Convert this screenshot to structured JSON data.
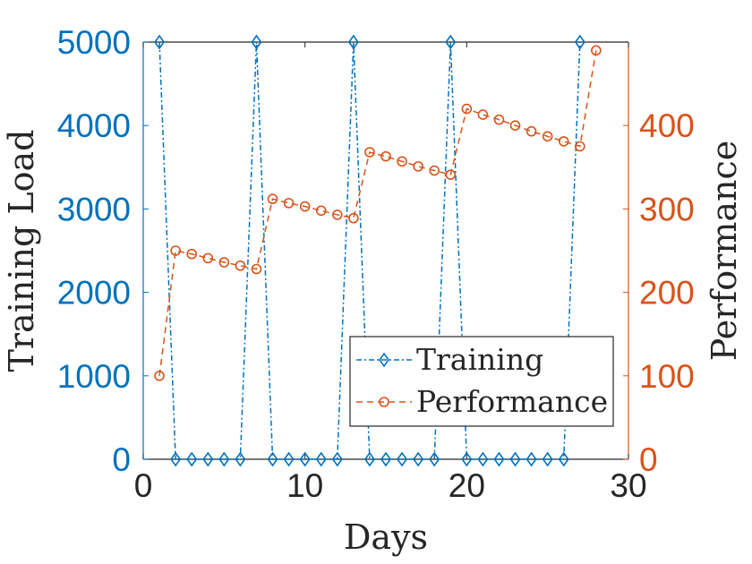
{
  "chart_data": {
    "type": "line",
    "xlabel": "Days",
    "ylabel_left": "Training Load",
    "ylabel_right": "Performance",
    "xlim": [
      0,
      30
    ],
    "ylim_left": [
      0,
      5000
    ],
    "ylim_right": [
      0,
      500
    ],
    "xticks": [
      0,
      10,
      20,
      30
    ],
    "yticks_left": [
      0,
      1000,
      2000,
      3000,
      4000,
      5000
    ],
    "yticks_right": [
      0,
      100,
      200,
      300,
      400
    ],
    "legend_position": "bottom-right",
    "colors": {
      "training": "#0072BD",
      "performance": "#D95319",
      "axis": "#262626"
    },
    "series": [
      {
        "name": "Training",
        "axis": "left",
        "marker": "diamond",
        "line_style": "dash-dot",
        "x": [
          1,
          2,
          3,
          4,
          5,
          6,
          7,
          8,
          9,
          10,
          11,
          12,
          13,
          14,
          15,
          16,
          17,
          18,
          19,
          20,
          21,
          22,
          23,
          24,
          25,
          26,
          27
        ],
        "values": [
          5000,
          0,
          0,
          0,
          0,
          0,
          5000,
          0,
          0,
          0,
          0,
          0,
          5000,
          0,
          0,
          0,
          0,
          0,
          5000,
          0,
          0,
          0,
          0,
          0,
          0,
          0,
          5000
        ]
      },
      {
        "name": "Performance",
        "axis": "right",
        "marker": "circle",
        "line_style": "dashed",
        "x": [
          1,
          2,
          3,
          4,
          5,
          6,
          7,
          8,
          9,
          10,
          11,
          12,
          13,
          14,
          15,
          16,
          17,
          18,
          19,
          20,
          21,
          22,
          23,
          24,
          25,
          26,
          27,
          28
        ],
        "values": [
          100,
          250,
          246,
          241,
          236,
          232,
          228,
          312,
          307,
          303,
          298,
          293,
          289,
          368,
          363,
          357,
          351,
          346,
          341,
          420,
          413,
          407,
          400,
          393,
          387,
          381,
          375,
          490
        ]
      }
    ]
  }
}
